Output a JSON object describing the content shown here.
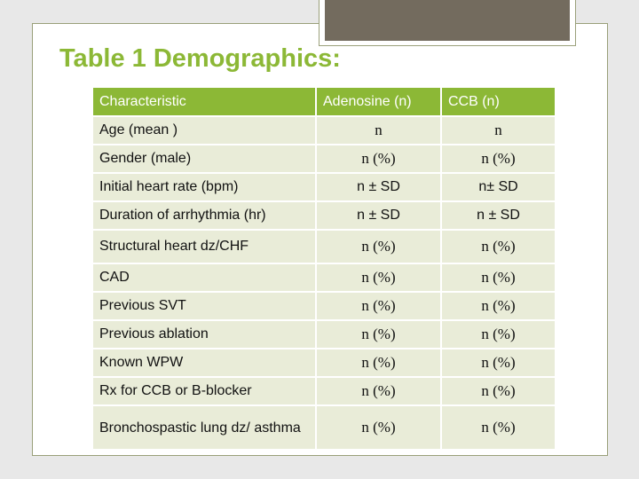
{
  "slide": {
    "title": "Table 1 Demographics:"
  },
  "table": {
    "headers": [
      "Characteristic",
      "Adenosine (n)",
      "CCB (n)"
    ],
    "rows": [
      {
        "label": "Age (mean )",
        "adenosine": "n",
        "ccb": "n"
      },
      {
        "label": "Gender (male)",
        "adenosine": "n (%)",
        "ccb": "n (%)"
      },
      {
        "label": "Initial heart rate (bpm)",
        "adenosine": "n ± SD",
        "ccb": "n± SD"
      },
      {
        "label": "Duration of arrhythmia (hr)",
        "adenosine": "n ± SD",
        "ccb": "n ± SD"
      },
      {
        "label": "Structural heart dz/CHF",
        "adenosine": "n (%)",
        "ccb": "n (%)"
      },
      {
        "label": "CAD",
        "adenosine": "n (%)",
        "ccb": "n (%)"
      },
      {
        "label": "Previous SVT",
        "adenosine": "n (%)",
        "ccb": "n (%)"
      },
      {
        "label": "Previous ablation",
        "adenosine": "n (%)",
        "ccb": "n (%)"
      },
      {
        "label": "Known WPW",
        "adenosine": "n (%)",
        "ccb": "n (%)"
      },
      {
        "label": "Rx for CCB or B-blocker",
        "adenosine": "n (%)",
        "ccb": "n (%)"
      },
      {
        "label": "Bronchospastic lung dz/ asthma",
        "adenosine": "n (%)",
        "ccb": "n (%)"
      }
    ]
  },
  "colors": {
    "accent_green": "#8cb836",
    "row_fill": "#e9ecd8",
    "tab_fill": "#736b5e"
  }
}
